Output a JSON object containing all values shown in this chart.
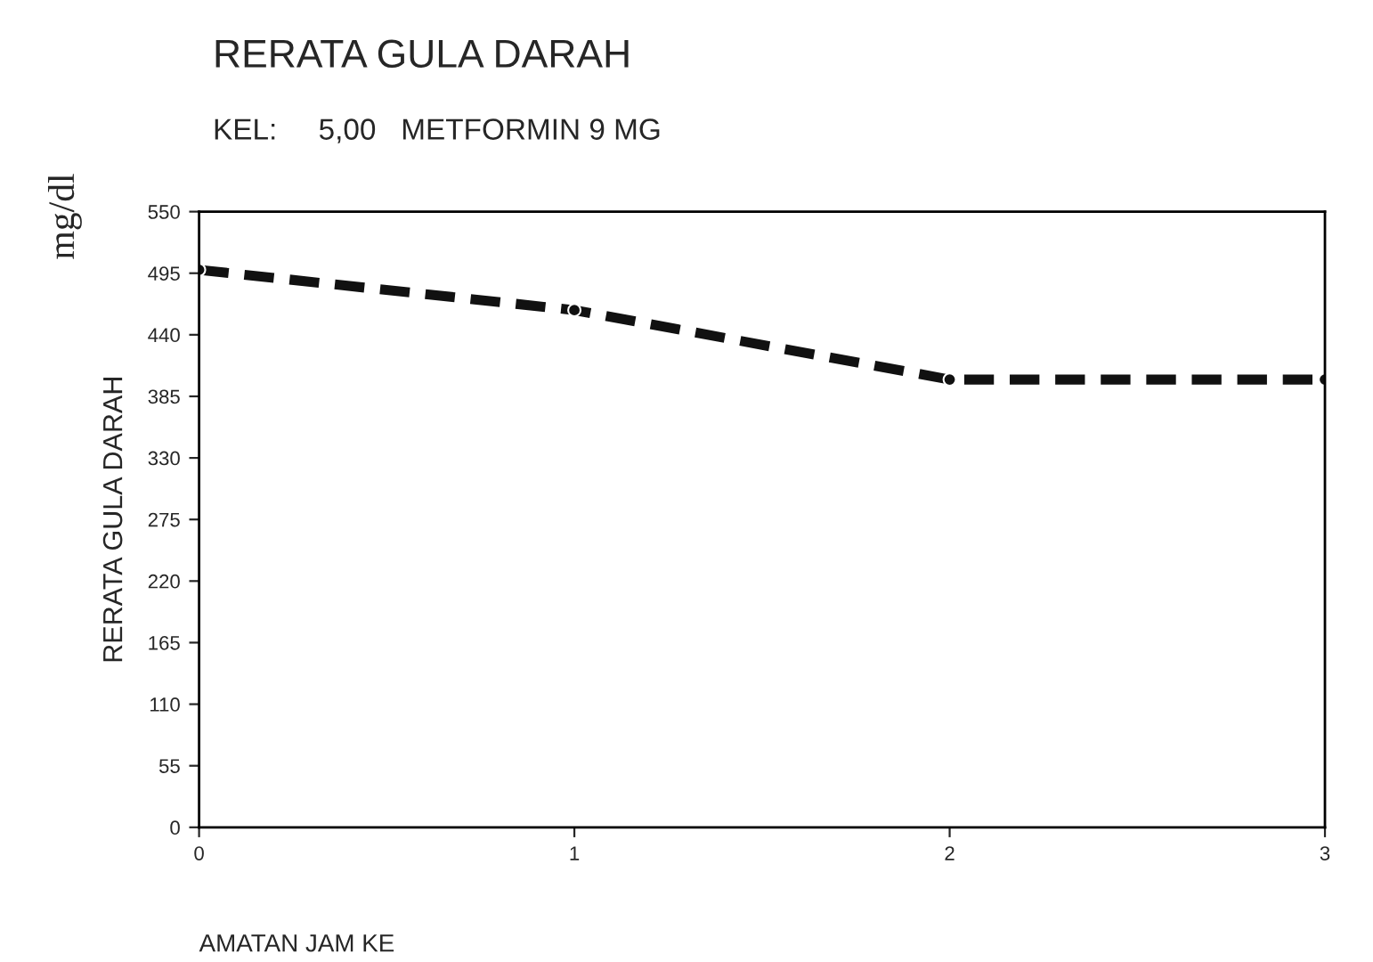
{
  "chart_data": {
    "type": "line",
    "title": "RERATA GULA DARAH",
    "subtitle": "KEL:     5,00   METFORMIN 9 MG",
    "xlabel": "AMATAN JAM KE",
    "ylabel": "RERATA GULA DARAH",
    "annotations": [
      "mg/dl"
    ],
    "x": [
      0,
      1,
      2,
      3
    ],
    "series": [
      {
        "color": "#111111",
        "values": [
          498,
          462,
          400,
          400
        ]
      }
    ],
    "xlim": [
      0,
      3
    ],
    "xticks": [
      0,
      1,
      2,
      3
    ],
    "ylim": [
      0,
      550
    ],
    "yticks": [
      0,
      55,
      110,
      165,
      220,
      275,
      330,
      385,
      440,
      495,
      550
    ],
    "grid": false,
    "legend": false,
    "marker": "circle",
    "line_style": "dashed"
  }
}
